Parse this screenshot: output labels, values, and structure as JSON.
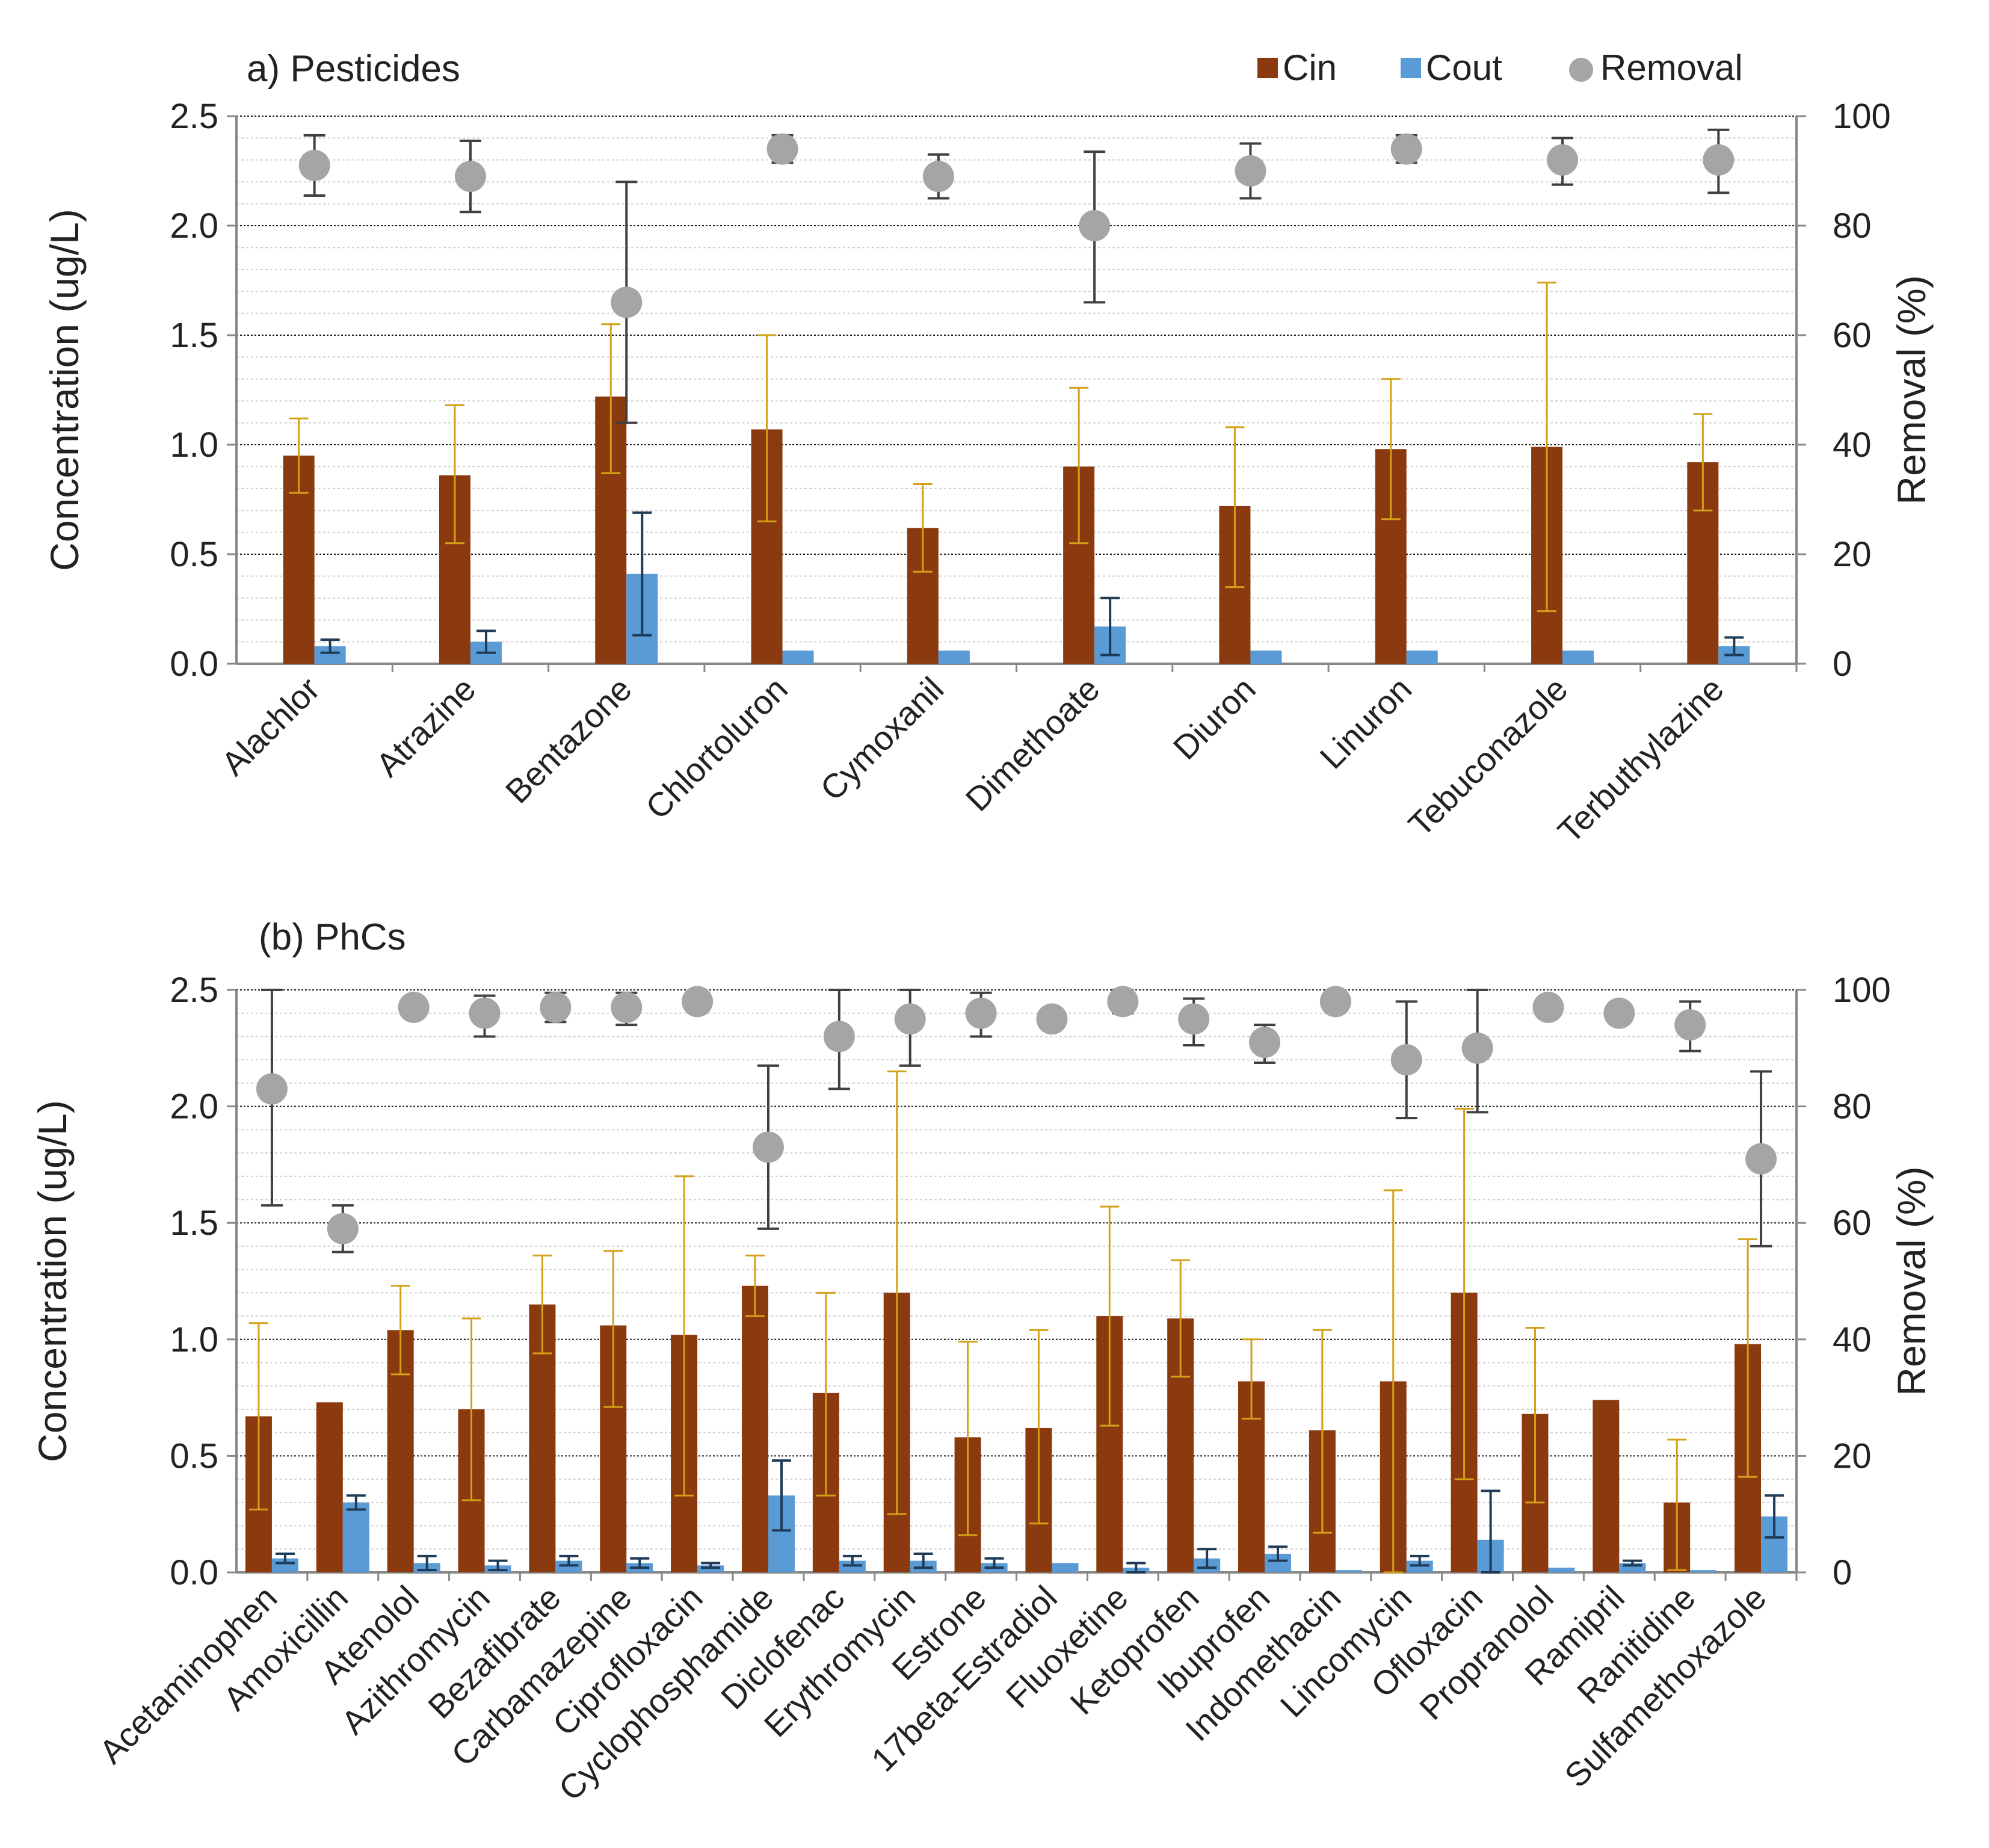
{
  "colors": {
    "cin": "#8B3A0F",
    "cout": "#5B9BD5",
    "removal": "#A5A5A5",
    "cin_err": "#D4A017",
    "cout_err": "#1F3B57",
    "removal_err": "#404040",
    "grid": "#1a1a1a",
    "axis": "#888888"
  },
  "legend": {
    "cin": "Cin",
    "cout": "Cout",
    "removal": "Removal"
  },
  "chart_data": [
    {
      "type": "bar",
      "title": "a) Pesticides",
      "ylabel": "Concentration (ug/L)",
      "y2label": "Removal (%)",
      "ylim": [
        0,
        2.5
      ],
      "y2lim": [
        0,
        100
      ],
      "yticks": [
        "0.0",
        "0.5",
        "1.0",
        "1.5",
        "2.0",
        "2.5"
      ],
      "y2ticks": [
        "0",
        "20",
        "40",
        "60",
        "80",
        "100"
      ],
      "categories": [
        "Alachlor",
        "Atrazine",
        "Bentazone",
        "Chlortoluron",
        "Cymoxanil",
        "Dimethoate",
        "Diuron",
        "Linuron",
        "Tebuconazole",
        "Terbuthylazine"
      ],
      "series": [
        {
          "name": "Cin",
          "values": [
            0.95,
            0.86,
            1.22,
            1.07,
            0.62,
            0.9,
            0.72,
            0.98,
            0.99,
            0.92
          ],
          "err_low": [
            0.17,
            0.31,
            0.35,
            0.42,
            0.2,
            0.35,
            0.37,
            0.32,
            0.75,
            0.22
          ],
          "err_high": [
            0.17,
            0.32,
            0.33,
            0.43,
            0.2,
            0.36,
            0.36,
            0.32,
            0.75,
            0.22
          ]
        },
        {
          "name": "Cout",
          "values": [
            0.08,
            0.1,
            0.41,
            0.06,
            0.06,
            0.17,
            0.06,
            0.06,
            0.06,
            0.08
          ],
          "err_low": [
            0.03,
            0.05,
            0.28,
            0.0,
            0.0,
            0.13,
            0.0,
            0.0,
            0.0,
            0.04
          ],
          "err_high": [
            0.03,
            0.05,
            0.28,
            0.0,
            0.0,
            0.13,
            0.0,
            0.0,
            0.0,
            0.04
          ]
        },
        {
          "name": "Removal",
          "axis": "y2",
          "values": [
            91,
            89,
            66,
            94,
            89,
            80,
            90,
            94,
            92,
            92
          ],
          "err_low": [
            5.5,
            6.5,
            22,
            2.5,
            4,
            14,
            5,
            2.5,
            4.5,
            6
          ],
          "err_high": [
            5.5,
            6.5,
            22,
            2.5,
            4,
            13.5,
            5,
            2.5,
            4,
            5.5
          ]
        }
      ]
    },
    {
      "type": "bar",
      "title": "(b) PhCs",
      "ylabel": "Concentration (ug/L)",
      "y2label": "Removal (%)",
      "ylim": [
        0,
        2.5
      ],
      "y2lim": [
        0,
        100
      ],
      "yticks": [
        "0.0",
        "0.5",
        "1.0",
        "1.5",
        "2.0",
        "2.5"
      ],
      "y2ticks": [
        "0",
        "20",
        "40",
        "60",
        "80",
        "100"
      ],
      "categories": [
        "Acetaminophen",
        "Amoxicillin",
        "Atenolol",
        "Azithromycin",
        "Bezafibrate",
        "Carbamazepine",
        "Ciprofloxacin",
        "Cyclophosphamide",
        "Diclofenac",
        "Erythromycin",
        "Estrone",
        "17beta-Estradiol",
        "Fluoxetine",
        "Ketoprofen",
        "Ibuprofen",
        "Indomethacin",
        "Lincomycin",
        "Ofloxacin",
        "Propranolol",
        "Ramipril",
        "Ranitidine",
        "Sulfamethoxazole"
      ],
      "series": [
        {
          "name": "Cin",
          "values": [
            0.67,
            0.73,
            1.04,
            0.7,
            1.15,
            1.06,
            1.02,
            1.23,
            0.77,
            1.2,
            0.58,
            0.62,
            1.1,
            1.09,
            0.82,
            0.61,
            0.82,
            1.2,
            0.68,
            0.74,
            0.3,
            0.98
          ],
          "err_low": [
            0.4,
            0.0,
            0.19,
            0.39,
            0.21,
            0.35,
            0.69,
            0.13,
            0.44,
            0.95,
            0.42,
            0.41,
            0.47,
            0.25,
            0.16,
            0.44,
            0.82,
            0.8,
            0.38,
            0.0,
            0.29,
            0.57
          ],
          "err_high": [
            0.4,
            0.0,
            0.19,
            0.39,
            0.21,
            0.32,
            0.68,
            0.13,
            0.43,
            0.95,
            0.41,
            0.42,
            0.47,
            0.25,
            0.18,
            0.43,
            0.82,
            0.79,
            0.37,
            0.0,
            0.27,
            0.45
          ]
        },
        {
          "name": "Cout",
          "values": [
            0.06,
            0.3,
            0.04,
            0.03,
            0.05,
            0.04,
            0.03,
            0.33,
            0.05,
            0.05,
            0.04,
            0.04,
            0.02,
            0.06,
            0.08,
            0.01,
            0.05,
            0.14,
            0.02,
            0.04,
            0.01,
            0.24
          ],
          "err_low": [
            0.02,
            0.03,
            0.03,
            0.02,
            0.02,
            0.02,
            0.01,
            0.15,
            0.02,
            0.03,
            0.02,
            0.0,
            0.02,
            0.04,
            0.03,
            0.0,
            0.02,
            0.21,
            0.0,
            0.01,
            0.0,
            0.09
          ],
          "err_high": [
            0.02,
            0.03,
            0.03,
            0.02,
            0.02,
            0.02,
            0.01,
            0.15,
            0.02,
            0.03,
            0.02,
            0.0,
            0.02,
            0.04,
            0.03,
            0.0,
            0.02,
            0.21,
            0.0,
            0.01,
            0.0,
            0.09
          ]
        },
        {
          "name": "Removal",
          "axis": "y2",
          "values": [
            83,
            59,
            97,
            96,
            97,
            97,
            98,
            73,
            92,
            95,
            96,
            95,
            98,
            95,
            91,
            98,
            88,
            90,
            97,
            96,
            94,
            71
          ],
          "err_low": [
            20,
            4,
            1.5,
            4,
            2.5,
            3,
            0.0,
            14,
            9,
            8,
            4,
            0.0,
            2,
            4.5,
            3.5,
            0.0,
            10,
            11,
            0.0,
            0.0,
            4.5,
            15
          ],
          "err_high": [
            20,
            4,
            1.5,
            3,
            2.5,
            2.5,
            0.0,
            14,
            9,
            8,
            3.5,
            0.0,
            2,
            3.5,
            3,
            0.0,
            10,
            11,
            0.0,
            0.0,
            4,
            15
          ]
        }
      ]
    }
  ]
}
